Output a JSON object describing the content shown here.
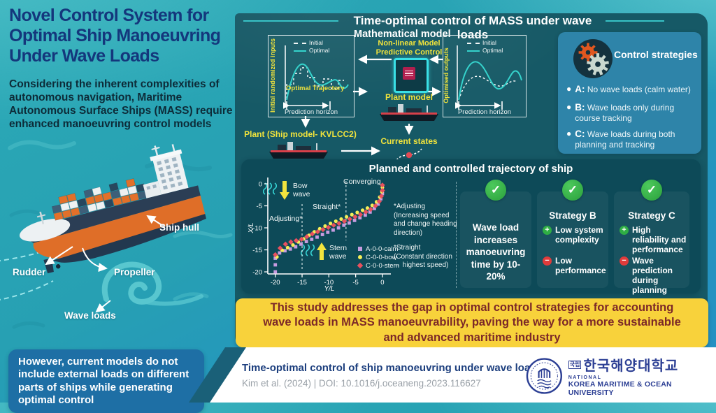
{
  "colors": {
    "background_teal": "#27a0b3",
    "panel_dark": "#165966",
    "trajectory_panel": "#0d4a58",
    "strategies_box": "#2e84a9",
    "banner_yellow": "#f8d23b",
    "banner_text": "#7c2828",
    "title_navy": "#14377c",
    "label_yellow": "#f0e33c",
    "optimal_cyan": "#35d3cc",
    "check_green": "#2fae44",
    "minus_red": "#e03b3b",
    "however_blue": "#1e6fa5",
    "logo_blue": "#2c3f94"
  },
  "left": {
    "title": "Novel Control System for Optimal Ship Manoeuvring Under Wave Loads",
    "subtitle": "Considering the inherent complexities of autonomous navigation, Maritime Autonomous Surface Ships (MASS) require enhanced manoeuvring control models",
    "ship_labels": {
      "hull": "Ship hull",
      "rudder": "Rudder",
      "propeller": "Propeller",
      "wave_loads": "Wave loads"
    },
    "bottom_note": "However, current models do not include external loads on different parts of ships while generating optimal control"
  },
  "diagram": {
    "header": "Time-optimal control of MASS under wave loads",
    "subheader": "Mathematical model",
    "nmpc_label": "Non-linear Model Predictive Control",
    "plant_model_label": "Plant model",
    "plant_ship_label": "Plant (Ship model- KVLCC2)",
    "current_states_label": "Current states",
    "input_box": {
      "ylabel": "Initial randomized inputs",
      "legend_initial": "Initial",
      "legend_optimal": "Optimal",
      "annotation": "Optimal Trajectory",
      "xlabel": "Prediction horizon"
    },
    "output_box": {
      "ylabel": "Optimised outputs",
      "legend_initial": "Initial",
      "legend_optimal": "Optimal",
      "xlabel": "Prediction horizon"
    }
  },
  "strategies": {
    "title": "Control strategies",
    "items": [
      {
        "key": "A:",
        "text": "No wave loads (calm water)"
      },
      {
        "key": "B:",
        "text": "Wave loads only during course tracking"
      },
      {
        "key": "C:",
        "text": "Wave loads during both planning and tracking"
      }
    ]
  },
  "trajectory": {
    "title": "Planned and controlled trajectory of ship",
    "notes": [
      {
        "head": "*Adjusting",
        "body": "(Increasing speed and change heading direction)"
      },
      {
        "head": "*Straight",
        "body": "(Constant direction → highest speed)"
      }
    ],
    "outcome": "Wave load increases manoeuvring time by 10-20%",
    "strategy_b": {
      "title": "Strategy B",
      "pro": "Low system complexity",
      "con": "Low performance"
    },
    "strategy_c": {
      "title": "Strategy C",
      "pro": "High reliability and performance",
      "con": "Wave prediction during planning"
    }
  },
  "chart_data": {
    "type": "scatter",
    "title": "Planned and controlled trajectory of ship",
    "xlabel": "Y/L",
    "ylabel": "X/L",
    "xlim": [
      -21.4,
      0.9
    ],
    "ylim": [
      -21.3,
      0.8
    ],
    "x_ticks": [
      -20,
      -15,
      -10,
      -5,
      0
    ],
    "y_ticks": [
      0,
      -5,
      -10,
      -15,
      -20
    ],
    "grid": false,
    "legend_position": "inside lower right",
    "region_lines_x": [
      -15.0,
      -6.8
    ],
    "annotations": {
      "adjusting": "Adjusting*",
      "straight": "Straight*",
      "converging": "Converging",
      "bow_wave": "Bow wave",
      "stern_wave": "Stern wave"
    },
    "series": [
      {
        "name": "A-0-0-calm",
        "marker": "square",
        "color": "#c79ce0",
        "points": [
          [
            -20,
            -20
          ],
          [
            -20,
            -18.4
          ],
          [
            -20,
            -16.9
          ],
          [
            -19.2,
            -15.7
          ],
          [
            -18.2,
            -15.2
          ],
          [
            -17.2,
            -14.8
          ],
          [
            -16.2,
            -14.3
          ],
          [
            -15.2,
            -13.7
          ],
          [
            -14.2,
            -13.1
          ],
          [
            -13.2,
            -12.6
          ],
          [
            -12.2,
            -12.1
          ],
          [
            -11.2,
            -11.5
          ],
          [
            -10.2,
            -11.0
          ],
          [
            -9.2,
            -10.5
          ],
          [
            -8.2,
            -10.0
          ],
          [
            -7.2,
            -9.4
          ],
          [
            -6.2,
            -8.9
          ],
          [
            -5.2,
            -8.3
          ],
          [
            -4.2,
            -7.7
          ],
          [
            -3.2,
            -7.1
          ],
          [
            -2.3,
            -6.4
          ],
          [
            -1.5,
            -5.6
          ],
          [
            -0.8,
            -4.6
          ],
          [
            -0.3,
            -3.4
          ],
          [
            0,
            -2.2
          ]
        ]
      },
      {
        "name": "C-0-0-bow",
        "marker": "circle",
        "color": "#f4ee58",
        "points": [
          [
            -19.7,
            -16.6
          ],
          [
            -18.7,
            -15.1
          ],
          [
            -17.7,
            -14.5
          ],
          [
            -16.7,
            -13.9
          ],
          [
            -15.7,
            -13.2
          ],
          [
            -14.7,
            -12.5
          ],
          [
            -13.7,
            -11.7
          ],
          [
            -12.7,
            -10.9
          ],
          [
            -11.7,
            -10.2
          ],
          [
            -10.7,
            -9.6
          ],
          [
            -9.7,
            -9.0
          ],
          [
            -8.7,
            -8.5
          ],
          [
            -7.7,
            -8.0
          ],
          [
            -6.7,
            -7.5
          ],
          [
            -5.7,
            -7.0
          ],
          [
            -4.7,
            -6.5
          ],
          [
            -3.7,
            -6.0
          ],
          [
            -2.8,
            -5.5
          ],
          [
            -1.9,
            -4.9
          ],
          [
            -1.1,
            -4.1
          ],
          [
            -0.5,
            -3.0
          ],
          [
            -0.1,
            -1.8
          ],
          [
            0,
            -0.8
          ]
        ]
      },
      {
        "name": "C-0-0-stern",
        "marker": "diamond",
        "color": "#e8515f",
        "points": [
          [
            -20,
            -16.1
          ],
          [
            -19.1,
            -14.6
          ],
          [
            -18.1,
            -13.7
          ],
          [
            -17.1,
            -13.2
          ],
          [
            -16.1,
            -12.9
          ],
          [
            -15.1,
            -12.6
          ],
          [
            -14.1,
            -12.0
          ],
          [
            -13.1,
            -11.4
          ],
          [
            -12.1,
            -10.9
          ],
          [
            -11.1,
            -10.4
          ],
          [
            -10.1,
            -9.9
          ],
          [
            -9.1,
            -9.4
          ],
          [
            -8.1,
            -9.0
          ],
          [
            -7.1,
            -8.5
          ],
          [
            -6.1,
            -8.0
          ],
          [
            -5.1,
            -7.5
          ],
          [
            -4.1,
            -7.0
          ],
          [
            -3.1,
            -6.4
          ],
          [
            -2.2,
            -5.8
          ],
          [
            -1.3,
            -5.0
          ],
          [
            -0.6,
            -4.0
          ],
          [
            -0.2,
            -2.8
          ],
          [
            0,
            -1.5
          ],
          [
            0,
            -0.3
          ]
        ]
      }
    ]
  },
  "banner": {
    "text": "This study addresses the gap in optimal control strategies for accounting wave loads in MASS manoeuvrability, paving the way for a more sustainable and advanced maritime industry"
  },
  "footer": {
    "title": "Time-optimal control of ship manoeuvring under wave loads",
    "citation": "Kim et al. (2024) |  DOI: 10.1016/j.oceaneng.2023.116627",
    "logo": {
      "korean_prefix": "국립",
      "korean_name": "한국해양대학교",
      "national": "NATIONAL",
      "university": "KOREA MARITIME & OCEAN UNIVERSITY"
    }
  }
}
